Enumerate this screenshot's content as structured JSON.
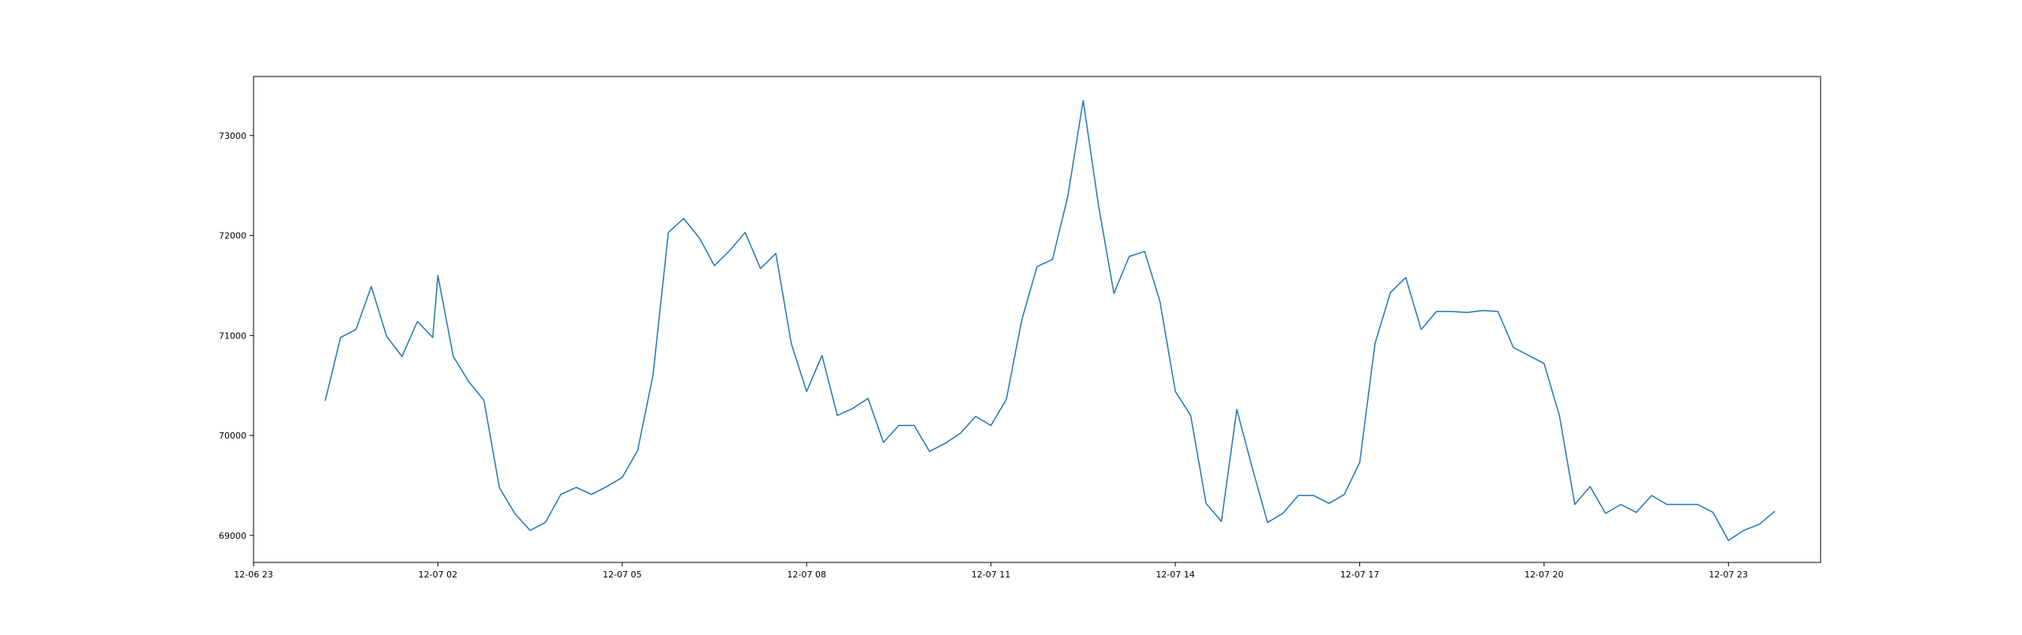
{
  "chart_data": {
    "type": "line",
    "title": "",
    "xlabel": "",
    "ylabel": "",
    "x_tick_labels": [
      "12-06 23",
      "12-07 02",
      "12-07 05",
      "12-07 08",
      "12-07 11",
      "12-07 14",
      "12-07 17",
      "12-07 20",
      "12-07 23"
    ],
    "y_tick_labels": [
      "69000",
      "70000",
      "71000",
      "72000",
      "73000"
    ],
    "y_ticks": [
      69000,
      70000,
      71000,
      72000,
      73000
    ],
    "ylim": [
      68730,
      73590
    ],
    "xlim": [
      "2024-12-06 23:00",
      "2024-12-08 00:30"
    ],
    "grid": false,
    "legend": "none",
    "series": [
      {
        "color": "#1f77b4",
        "x": [
          "2024-12-07 00:10",
          "2024-12-07 00:25",
          "2024-12-07 00:40",
          "2024-12-07 00:55",
          "2024-12-07 01:10",
          "2024-12-07 01:25",
          "2024-12-07 01:40",
          "2024-12-07 01:55",
          "2024-12-07 02:00",
          "2024-12-07 02:15",
          "2024-12-07 02:30",
          "2024-12-07 02:45",
          "2024-12-07 03:00",
          "2024-12-07 03:15",
          "2024-12-07 03:30",
          "2024-12-07 03:45",
          "2024-12-07 04:00",
          "2024-12-07 04:15",
          "2024-12-07 04:30",
          "2024-12-07 04:45",
          "2024-12-07 05:00",
          "2024-12-07 05:15",
          "2024-12-07 05:30",
          "2024-12-07 05:45",
          "2024-12-07 06:00",
          "2024-12-07 06:15",
          "2024-12-07 06:30",
          "2024-12-07 06:45",
          "2024-12-07 07:00",
          "2024-12-07 07:15",
          "2024-12-07 07:30",
          "2024-12-07 07:45",
          "2024-12-07 08:00",
          "2024-12-07 08:15",
          "2024-12-07 08:30",
          "2024-12-07 08:45",
          "2024-12-07 09:00",
          "2024-12-07 09:15",
          "2024-12-07 09:30",
          "2024-12-07 09:45",
          "2024-12-07 10:00",
          "2024-12-07 10:15",
          "2024-12-07 10:30",
          "2024-12-07 10:45",
          "2024-12-07 11:00",
          "2024-12-07 11:15",
          "2024-12-07 11:30",
          "2024-12-07 11:45",
          "2024-12-07 12:00",
          "2024-12-07 12:15",
          "2024-12-07 12:30",
          "2024-12-07 12:45",
          "2024-12-07 13:00",
          "2024-12-07 13:15",
          "2024-12-07 13:30",
          "2024-12-07 13:45",
          "2024-12-07 14:00",
          "2024-12-07 14:15",
          "2024-12-07 14:30",
          "2024-12-07 14:45",
          "2024-12-07 15:00",
          "2024-12-07 15:15",
          "2024-12-07 15:30",
          "2024-12-07 15:45",
          "2024-12-07 16:00",
          "2024-12-07 16:15",
          "2024-12-07 16:30",
          "2024-12-07 16:45",
          "2024-12-07 17:00",
          "2024-12-07 17:15",
          "2024-12-07 17:30",
          "2024-12-07 17:45",
          "2024-12-07 18:00",
          "2024-12-07 18:15",
          "2024-12-07 18:30",
          "2024-12-07 18:45",
          "2024-12-07 19:00",
          "2024-12-07 19:15",
          "2024-12-07 19:30",
          "2024-12-07 19:45",
          "2024-12-07 20:00",
          "2024-12-07 20:15",
          "2024-12-07 20:30",
          "2024-12-07 20:45",
          "2024-12-07 21:00",
          "2024-12-07 21:15",
          "2024-12-07 21:30",
          "2024-12-07 21:45",
          "2024-12-07 22:00",
          "2024-12-07 22:15",
          "2024-12-07 22:30",
          "2024-12-07 22:45",
          "2024-12-07 23:00",
          "2024-12-07 23:15",
          "2024-12-07 23:30",
          "2024-12-07 23:45"
        ],
        "y": [
          70350,
          70980,
          71060,
          71490,
          70990,
          70790,
          71140,
          70980,
          71600,
          70790,
          70540,
          70350,
          69480,
          69220,
          69050,
          69130,
          69410,
          69480,
          69410,
          69490,
          69580,
          69850,
          70600,
          72030,
          72170,
          71980,
          71700,
          71850,
          72030,
          71670,
          71820,
          70920,
          70440,
          70800,
          70200,
          70270,
          70370,
          69930,
          70100,
          70100,
          69840,
          69920,
          70020,
          70190,
          70100,
          70360,
          71150,
          71690,
          71760,
          72390,
          73350,
          72300,
          71420,
          71790,
          71840,
          71340,
          70440,
          70200,
          69320,
          69140,
          70260,
          69680,
          69130,
          69220,
          69400,
          69400,
          69320,
          69410,
          69730,
          70920,
          71430,
          71580,
          71060,
          71240,
          71240,
          71230,
          71250,
          71240,
          70880,
          70800,
          70720,
          70200,
          69310,
          69490,
          69220,
          69310,
          69230,
          69400,
          69310,
          69310,
          69310,
          69230,
          68950,
          69050,
          69110,
          69240
        ]
      }
    ]
  }
}
